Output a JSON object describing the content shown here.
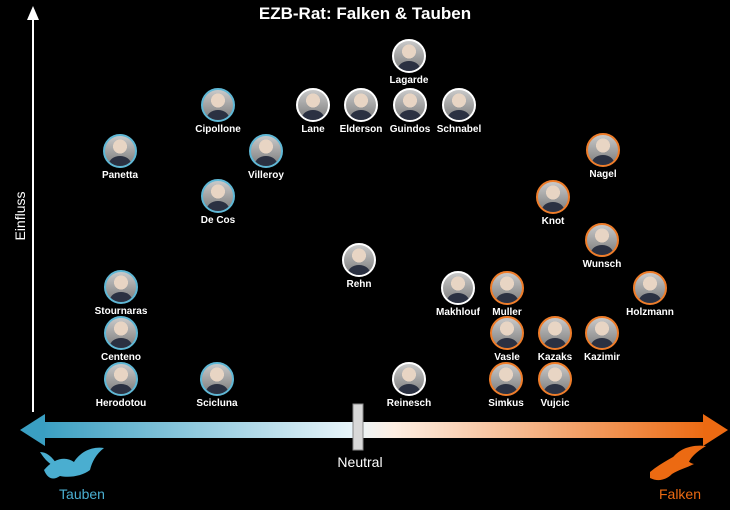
{
  "title": "EZB-Rat: Falken & Tauben",
  "y_axis_label": "Einfluss",
  "center_label": "Neutral",
  "left_label": "Tauben",
  "right_label": "Falken",
  "colors": {
    "dove": "#5fb8d6",
    "hawk": "#ef7d2a",
    "neutral": "#ffffff",
    "background": "#000000"
  },
  "icons": {
    "dove": "dove-icon",
    "hawk": "hawk-icon"
  },
  "members": [
    {
      "name": "Lagarde",
      "stance": "neutral",
      "position": "center"
    },
    {
      "name": "Cipollone",
      "stance": "dove"
    },
    {
      "name": "Lane",
      "stance": "neutral"
    },
    {
      "name": "Elderson",
      "stance": "neutral"
    },
    {
      "name": "Guindos",
      "stance": "neutral"
    },
    {
      "name": "Schnabel",
      "stance": "neutral"
    },
    {
      "name": "Panetta",
      "stance": "dove"
    },
    {
      "name": "Villeroy",
      "stance": "dove"
    },
    {
      "name": "Nagel",
      "stance": "hawk"
    },
    {
      "name": "De Cos",
      "stance": "dove"
    },
    {
      "name": "Knot",
      "stance": "hawk"
    },
    {
      "name": "Wunsch",
      "stance": "hawk"
    },
    {
      "name": "Rehn",
      "stance": "neutral"
    },
    {
      "name": "Stournaras",
      "stance": "dove"
    },
    {
      "name": "Makhlouf",
      "stance": "neutral"
    },
    {
      "name": "Muller",
      "stance": "hawk"
    },
    {
      "name": "Holzmann",
      "stance": "hawk"
    },
    {
      "name": "Centeno",
      "stance": "dove"
    },
    {
      "name": "Vasle",
      "stance": "hawk"
    },
    {
      "name": "Kazaks",
      "stance": "hawk"
    },
    {
      "name": "Kazimir",
      "stance": "hawk"
    },
    {
      "name": "Herodotou",
      "stance": "dove"
    },
    {
      "name": "Scicluna",
      "stance": "dove"
    },
    {
      "name": "Reinesch",
      "stance": "neutral"
    },
    {
      "name": "Simkus",
      "stance": "hawk"
    },
    {
      "name": "Vujcic",
      "stance": "hawk"
    }
  ]
}
